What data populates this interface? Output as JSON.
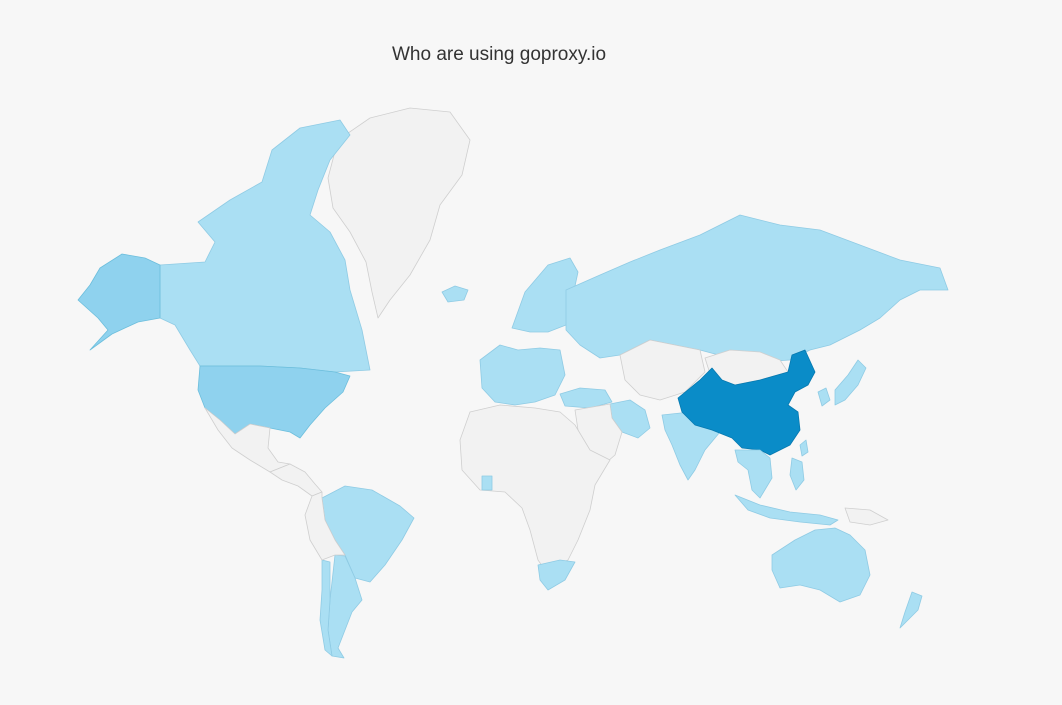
{
  "title": "Who are using goproxy.io",
  "colors": {
    "background": "#f7f7f7",
    "no_data": "#f2f2f2",
    "low": "#aadff3",
    "medium": "#8fd2ee",
    "high": "#0a8cc8"
  },
  "countries": [
    {
      "name": "Greenland",
      "level": 0
    },
    {
      "name": "Canada",
      "level": 1
    },
    {
      "name": "Alaska (United States)",
      "level": 2
    },
    {
      "name": "United States",
      "level": 2
    },
    {
      "name": "Mexico",
      "level": 0
    },
    {
      "name": "Central America",
      "level": 0
    },
    {
      "name": "Iceland",
      "level": 1
    },
    {
      "name": "Brazil",
      "level": 1
    },
    {
      "name": "Argentina",
      "level": 1
    },
    {
      "name": "Chile",
      "level": 1
    },
    {
      "name": "Rest of South America",
      "level": 0
    },
    {
      "name": "Western Europe",
      "level": 1
    },
    {
      "name": "Scandinavia",
      "level": 1
    },
    {
      "name": "Russia",
      "level": 1
    },
    {
      "name": "Turkey",
      "level": 1
    },
    {
      "name": "Iran",
      "level": 1
    },
    {
      "name": "India",
      "level": 1
    },
    {
      "name": "Central Asia",
      "level": 0
    },
    {
      "name": "Middle East",
      "level": 0
    },
    {
      "name": "Africa",
      "level": 0
    },
    {
      "name": "South Africa",
      "level": 1
    },
    {
      "name": "Ghana",
      "level": 1
    },
    {
      "name": "China",
      "level": 3
    },
    {
      "name": "Mongolia",
      "level": 0
    },
    {
      "name": "Japan",
      "level": 1
    },
    {
      "name": "South Korea",
      "level": 1
    },
    {
      "name": "Taiwan",
      "level": 1
    },
    {
      "name": "Southeast Asia",
      "level": 1
    },
    {
      "name": "Philippines",
      "level": 1
    },
    {
      "name": "Indonesia",
      "level": 1
    },
    {
      "name": "Australia",
      "level": 1
    },
    {
      "name": "New Zealand",
      "level": 1
    },
    {
      "name": "Papua New Guinea",
      "level": 0
    }
  ]
}
